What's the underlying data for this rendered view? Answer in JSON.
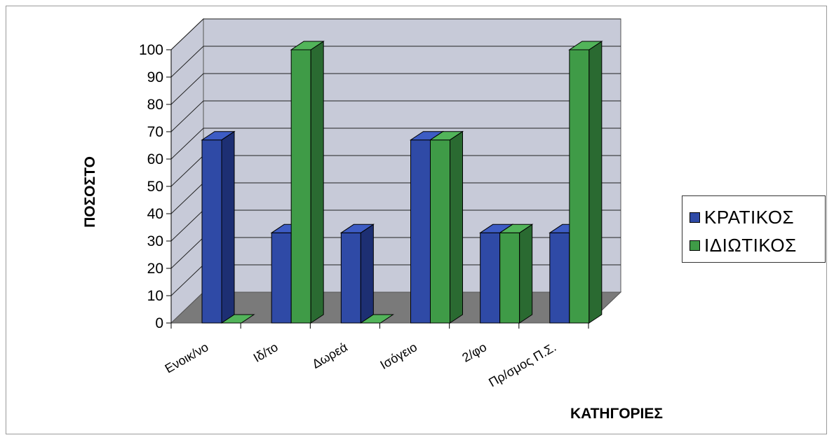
{
  "chart_data": {
    "type": "bar",
    "title": "",
    "xlabel": "ΚΑΤΗΓΟΡΙΕΣ",
    "ylabel": "ΠΟΣΟΣΤΟ",
    "ylim": [
      0,
      100
    ],
    "yticks": [
      "0",
      "10",
      "20",
      "30",
      "40",
      "50",
      "60",
      "70",
      "80",
      "90",
      "100"
    ],
    "categories": [
      "Ενοικ/νο",
      "Ιδ/το",
      "Δωρεά",
      "Ισόγειο",
      "2/φο",
      "Πρ/σμος Π.Σ."
    ],
    "series": [
      {
        "name": "ΚΡΑΤΙΚΟΣ",
        "values": [
          67,
          33,
          33,
          67,
          33,
          33
        ]
      },
      {
        "name": "ΙΔΙΩΤΙΚΟΣ",
        "values": [
          0,
          100,
          0,
          67,
          33,
          100
        ]
      }
    ],
    "legend_position": "right",
    "grid": true,
    "style": "3d-column"
  },
  "colors": {
    "series": [
      {
        "front": "#2f4aa6",
        "side": "#1d2f73",
        "top": "#3d5cc4"
      },
      {
        "front": "#3f9b47",
        "side": "#2a6a31",
        "top": "#52b45a"
      }
    ],
    "wall": "#c7cad8",
    "floor": "#7a7a7a",
    "grid": "#222222"
  }
}
